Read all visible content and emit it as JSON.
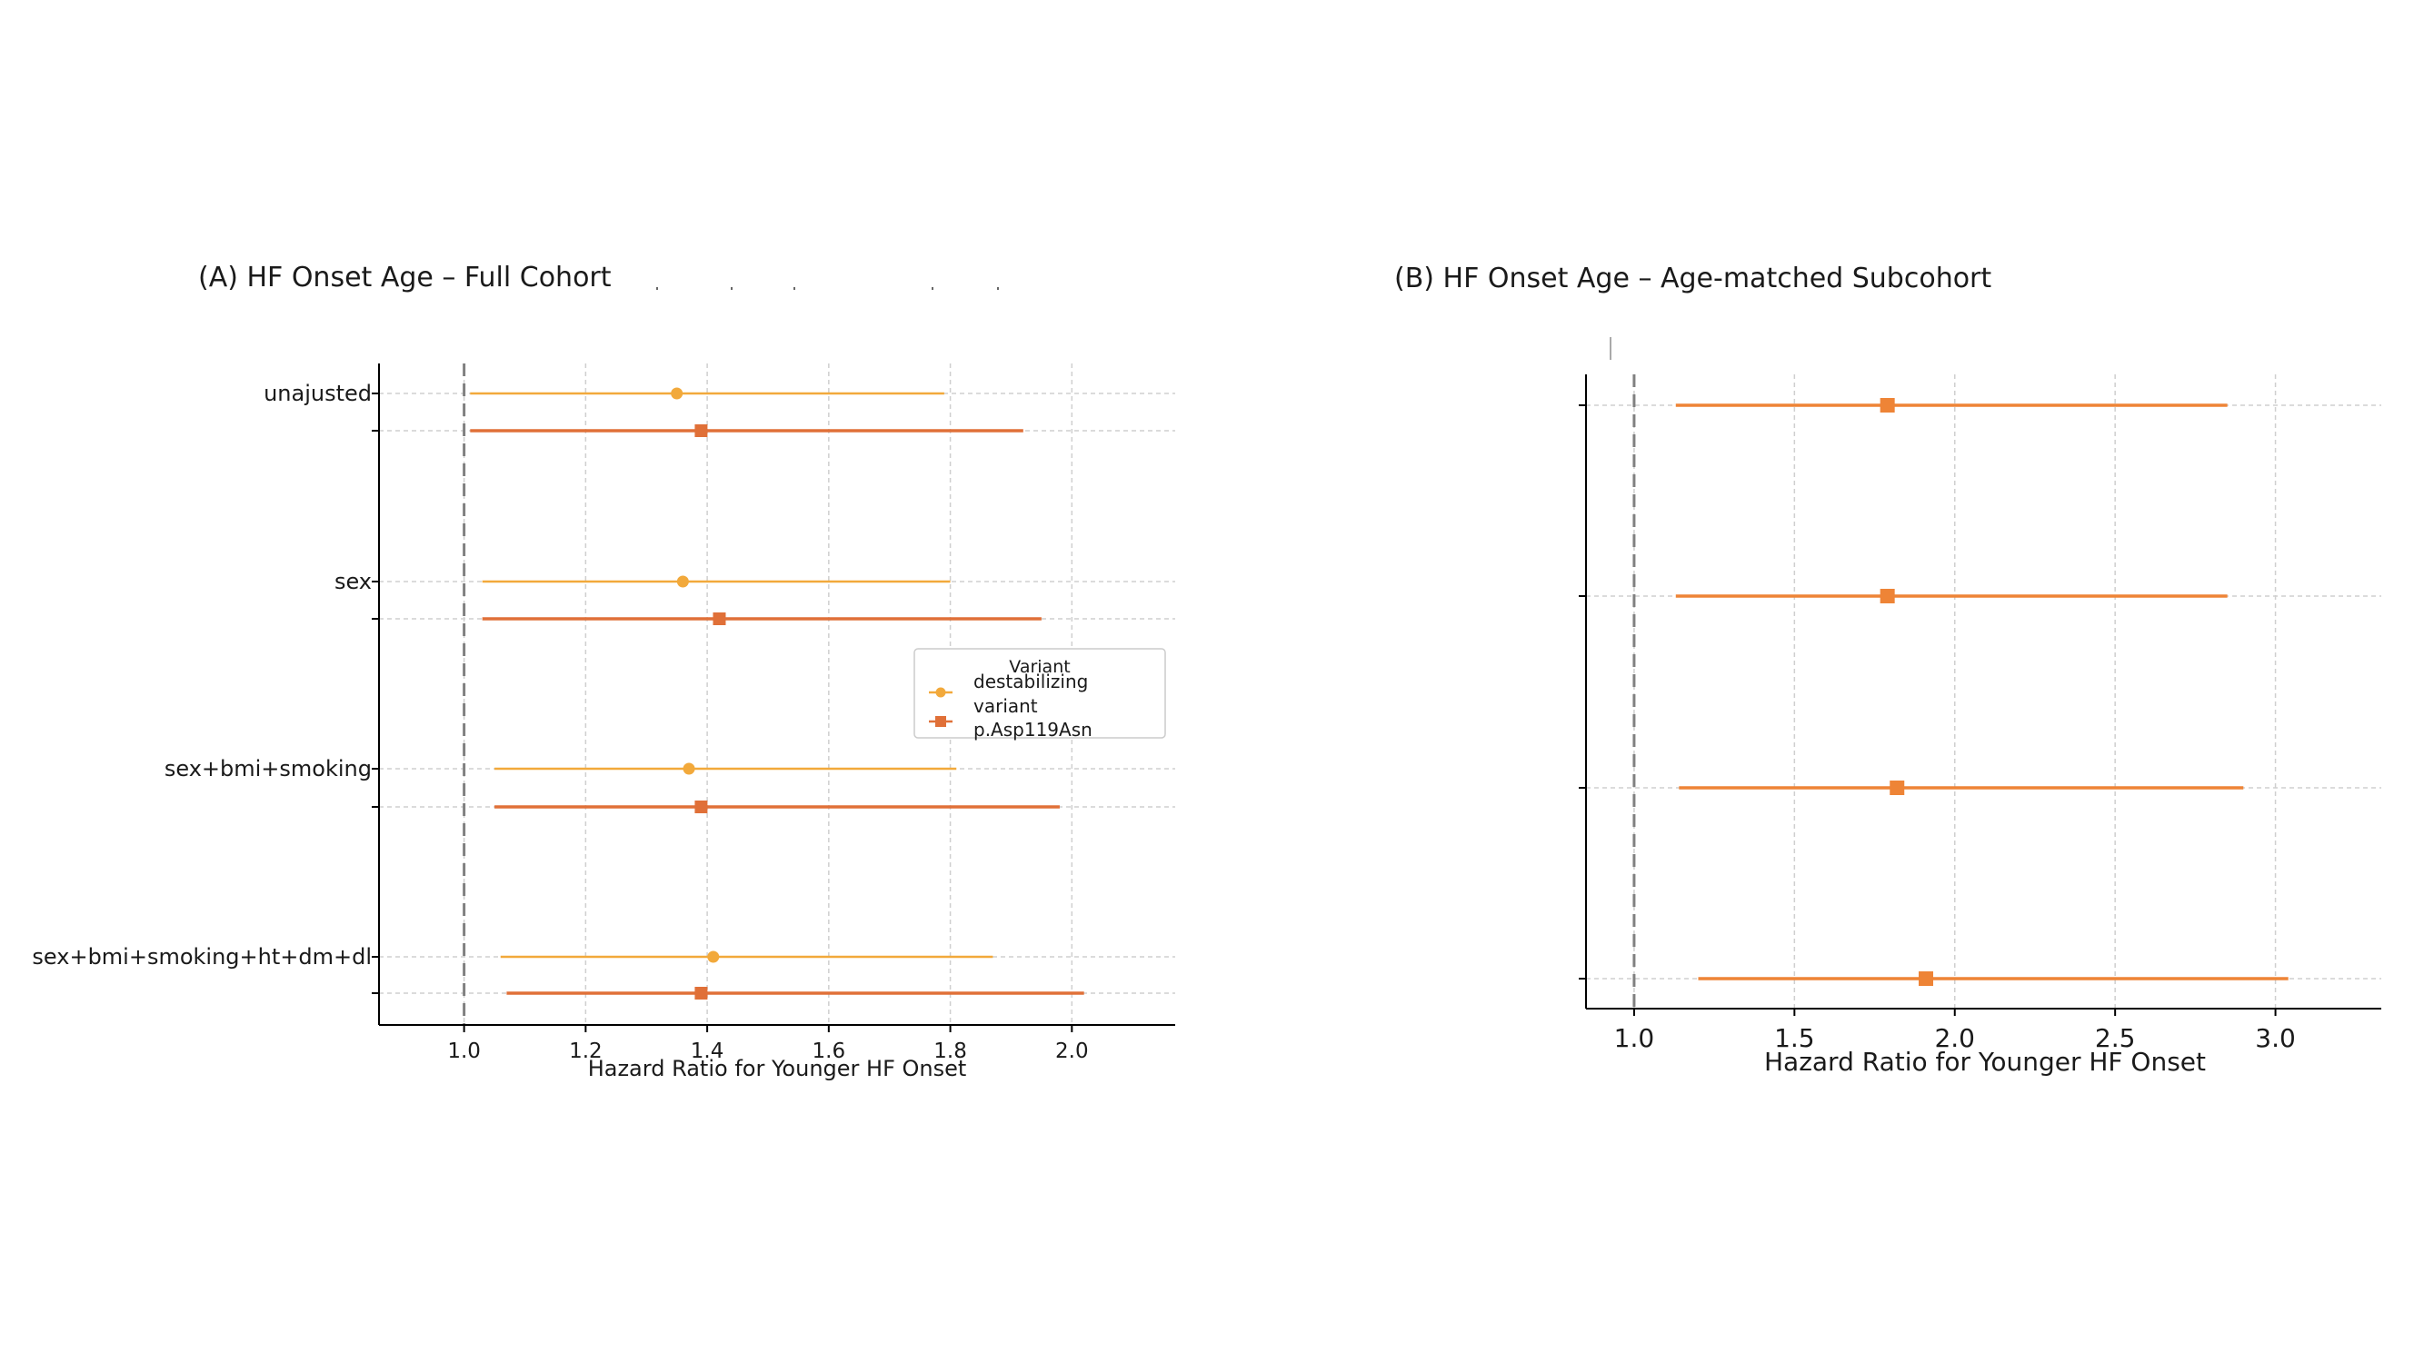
{
  "chart_data": [
    {
      "type": "forest",
      "title": "(A) HF Onset Age – Full Cohort",
      "xlabel": "Hazard Ratio for Younger HF Onset",
      "ylabel": "",
      "xlim": [
        0.86,
        2.17
      ],
      "xticks": [
        1.0,
        1.2,
        1.4,
        1.6,
        1.8,
        2.0
      ],
      "xtick_labels": [
        "1.0",
        "1.2",
        "1.4",
        "1.6",
        "1.8",
        "2.0"
      ],
      "reference_line": 1.0,
      "grid": true,
      "categories": [
        "unajusted",
        "sex",
        "sex+bmi+smoking",
        "sex+bmi+smoking+ht+dm+dl"
      ],
      "legend": {
        "title": "Variant",
        "placement": "center-right",
        "entries": [
          "destabilizing variant",
          "p.Asp119Asn"
        ]
      },
      "series": [
        {
          "name": "destabilizing variant",
          "marker": "circle",
          "color": "#f2a93b",
          "hr": [
            1.35,
            1.36,
            1.37,
            1.41
          ],
          "lower": [
            1.01,
            1.03,
            1.05,
            1.06
          ],
          "upper": [
            1.79,
            1.8,
            1.81,
            1.87
          ]
        },
        {
          "name": "p.Asp119Asn",
          "marker": "square",
          "color": "#e07038",
          "hr": [
            1.39,
            1.42,
            1.39,
            1.39
          ],
          "lower": [
            1.01,
            1.03,
            1.05,
            1.07
          ],
          "upper": [
            1.92,
            1.95,
            1.98,
            2.02
          ]
        }
      ]
    },
    {
      "type": "forest",
      "title": "(B) HF Onset Age – Age-matched Subcohort",
      "xlabel": "Hazard Ratio for Younger HF Onset",
      "ylabel": "",
      "xlim": [
        0.85,
        3.33
      ],
      "xticks": [
        1.0,
        1.5,
        2.0,
        2.5,
        3.0
      ],
      "xtick_labels": [
        "1.0",
        "1.5",
        "2.0",
        "2.5",
        "3.0"
      ],
      "reference_line": 1.0,
      "grid": true,
      "series": [
        {
          "name": "",
          "marker": "square",
          "color": "#ee8436",
          "hr": [
            1.79,
            1.79,
            1.82,
            1.91
          ],
          "lower": [
            1.13,
            1.13,
            1.14,
            1.2
          ],
          "upper": [
            2.85,
            2.85,
            2.9,
            3.04
          ]
        }
      ]
    }
  ]
}
